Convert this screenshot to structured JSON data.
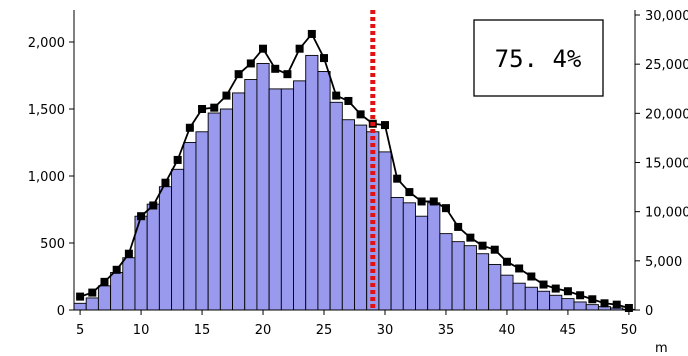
{
  "chart_data": {
    "type": "bar",
    "annotation": "75. 4%",
    "x": [
      5,
      6,
      7,
      8,
      9,
      10,
      11,
      12,
      13,
      14,
      15,
      16,
      17,
      18,
      19,
      20,
      21,
      22,
      23,
      24,
      25,
      26,
      27,
      28,
      29,
      30,
      31,
      32,
      33,
      34,
      35,
      36,
      37,
      38,
      39,
      40,
      41,
      42,
      43,
      44,
      45,
      46,
      47,
      48,
      49,
      50
    ],
    "xlim": [
      5,
      50
    ],
    "x_ticks": [
      "5",
      "10",
      "15",
      "20",
      "25",
      "30",
      "35",
      "40",
      "45",
      "50"
    ],
    "x_unit": "m",
    "left_axis": {
      "ylim": [
        0,
        2000
      ],
      "ticks": [
        "0",
        "500",
        "1,000",
        "1,500",
        "2,000"
      ]
    },
    "right_axis": {
      "ylim": [
        0,
        30000
      ],
      "ticks": [
        "0",
        "5,000",
        "10,000",
        "15,000",
        "20,000",
        "25,000",
        "30,000"
      ]
    },
    "grid": false,
    "vline": {
      "x": 29,
      "color": "#e21212",
      "style": "dotted"
    },
    "series": [
      {
        "kind": "bar",
        "color": "#9999ee",
        "values": [
          50,
          90,
          180,
          280,
          390,
          700,
          790,
          920,
          1050,
          1250,
          1330,
          1470,
          1500,
          1620,
          1720,
          1840,
          1650,
          1650,
          1710,
          1900,
          1780,
          1550,
          1420,
          1380,
          1330,
          1180,
          840,
          800,
          700,
          800,
          570,
          510,
          480,
          420,
          340,
          260,
          200,
          170,
          140,
          110,
          85,
          60,
          40,
          25,
          15,
          5
        ]
      },
      {
        "kind": "line",
        "color": "#000000",
        "marker": "square",
        "values": [
          100,
          130,
          210,
          300,
          420,
          700,
          780,
          950,
          1120,
          1360,
          1500,
          1510,
          1600,
          1760,
          1840,
          1950,
          1800,
          1760,
          1950,
          2060,
          1880,
          1600,
          1560,
          1460,
          1390,
          1380,
          980,
          880,
          810,
          810,
          760,
          620,
          540,
          480,
          450,
          360,
          310,
          250,
          190,
          160,
          140,
          110,
          80,
          50,
          40,
          15
        ]
      }
    ]
  }
}
